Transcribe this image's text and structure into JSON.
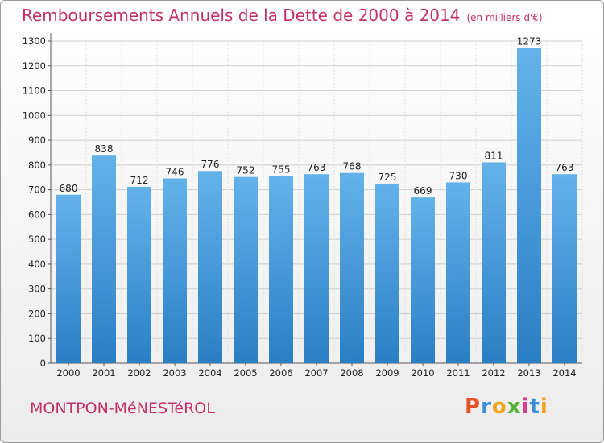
{
  "header": {
    "title": "Remboursements Annuels de la Dette de 2000 à 2014",
    "subtitle": "(en milliers d'€)"
  },
  "footer": {
    "location": "MONTPON-MéNESTéROL",
    "brand_letters": [
      "P",
      "r",
      "o",
      "x",
      "i",
      "t",
      "i"
    ],
    "brand_colors": [
      "#e8502a",
      "#3a8ed8",
      "#f2a51a",
      "#57b03a",
      "#d83a8e",
      "#3a8ed8",
      "#f2a51a"
    ]
  },
  "chart_data": {
    "type": "bar",
    "categories": [
      "2000",
      "2001",
      "2002",
      "2003",
      "2004",
      "2005",
      "2006",
      "2007",
      "2008",
      "2009",
      "2010",
      "2011",
      "2012",
      "2013",
      "2014"
    ],
    "values": [
      680,
      838,
      712,
      746,
      776,
      752,
      755,
      763,
      768,
      725,
      669,
      730,
      811,
      1273,
      763
    ],
    "yticks": [
      0,
      100,
      200,
      300,
      400,
      500,
      600,
      700,
      800,
      900,
      1000,
      1100,
      1200,
      1300
    ],
    "ylim": [
      0,
      1300
    ],
    "grid": true,
    "bar_color_top": "#63b2ea",
    "bar_color_bottom": "#2a7fc4"
  }
}
